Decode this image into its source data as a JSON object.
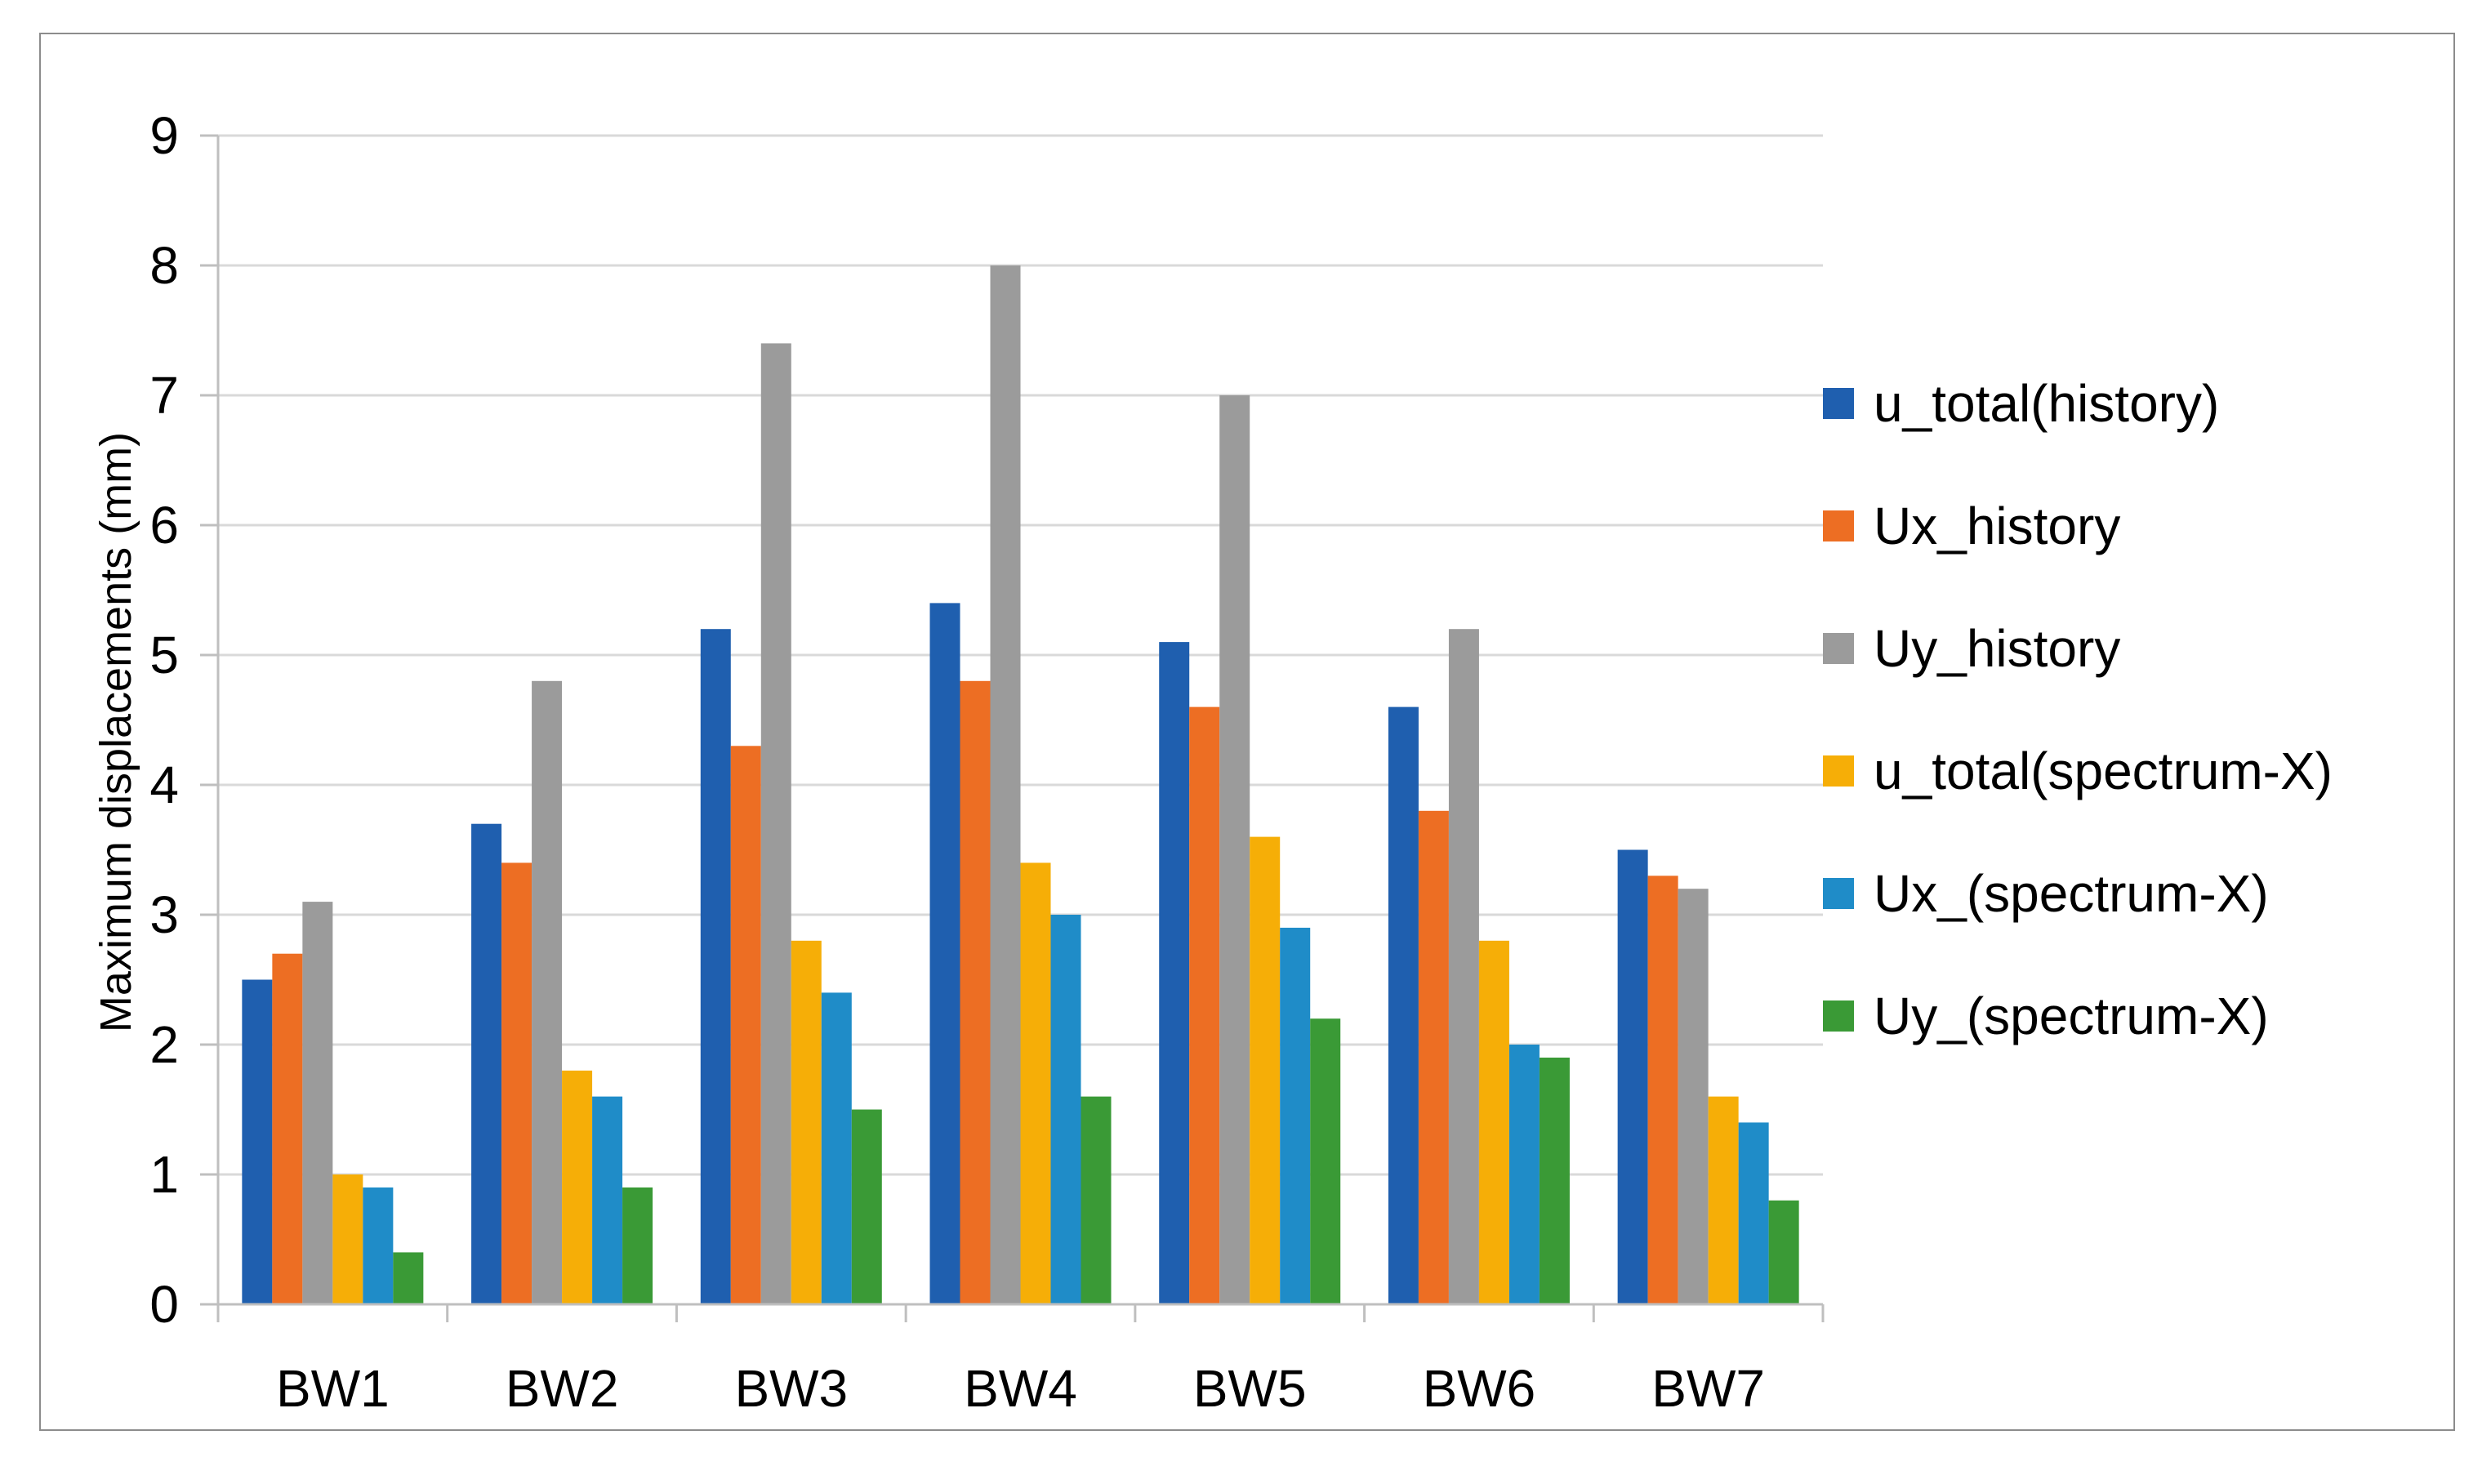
{
  "chart_data": {
    "type": "bar",
    "title": "",
    "xlabel": "",
    "ylabel": "Maximum displacements (mm)",
    "ylim": [
      0,
      9
    ],
    "yticks": [
      0,
      1,
      2,
      3,
      4,
      5,
      6,
      7,
      8,
      9
    ],
    "grid": true,
    "legend_position": "right",
    "categories": [
      "BW1",
      "BW2",
      "BW3",
      "BW4",
      "BW5",
      "BW6",
      "BW7"
    ],
    "series": [
      {
        "name": "u_total(history)",
        "color": "#1F5FAF",
        "values": [
          2.5,
          3.7,
          5.2,
          5.4,
          5.1,
          4.6,
          3.5
        ]
      },
      {
        "name": "Ux_history",
        "color": "#ED6E23",
        "values": [
          2.7,
          3.4,
          4.3,
          4.8,
          4.6,
          3.8,
          3.3
        ]
      },
      {
        "name": "Uy_history",
        "color": "#9B9B9B",
        "values": [
          3.1,
          4.8,
          7.4,
          8.0,
          7.0,
          5.2,
          3.2
        ]
      },
      {
        "name": "u_total(spectrum-X)",
        "color": "#F6AE07",
        "values": [
          1.0,
          1.8,
          2.8,
          3.4,
          3.6,
          2.8,
          1.6
        ]
      },
      {
        "name": "Ux_(spectrum-X)",
        "color": "#1F8CC8",
        "values": [
          0.9,
          1.6,
          2.4,
          3.0,
          2.9,
          2.0,
          1.4
        ]
      },
      {
        "name": "Uy_(spectrum-X)",
        "color": "#3A9A36",
        "values": [
          0.4,
          0.9,
          1.5,
          1.6,
          2.2,
          1.9,
          0.8
        ]
      }
    ]
  },
  "colors": {
    "gridline": "#d9d9d9",
    "axis": "#bfbfbf",
    "frame": "#8c8c8c"
  }
}
